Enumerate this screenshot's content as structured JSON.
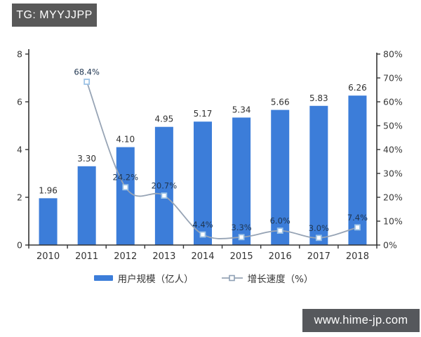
{
  "watermark_top": {
    "label": "TG: MYYJJPP"
  },
  "watermark_bottom": {
    "label": "www.hime-jp.com"
  },
  "chart_data": {
    "type": "bar",
    "subtype": "bar+line combo",
    "categories": [
      "2010",
      "2011",
      "2012",
      "2013",
      "2014",
      "2015",
      "2016",
      "2017",
      "2018"
    ],
    "series": [
      {
        "name": "用户规模（亿人）",
        "type": "bar",
        "axis": "left",
        "values": [
          1.96,
          3.3,
          4.1,
          4.95,
          5.17,
          5.34,
          5.66,
          5.83,
          6.26
        ],
        "labels": [
          "1.96",
          "3.30",
          "4.10",
          "4.95",
          "5.17",
          "5.34",
          "5.66",
          "5.83",
          "6.26"
        ],
        "color": "#3c7dd9"
      },
      {
        "name": "增长速度（%）",
        "type": "line",
        "axis": "right",
        "values": [
          null,
          68.4,
          24.2,
          20.7,
          4.4,
          3.3,
          6.0,
          3.0,
          7.4
        ],
        "labels": [
          "",
          "68.4%",
          "24.2%",
          "20.7%",
          "4.4%",
          "3.3%",
          "6.0%",
          "3.0%",
          "7.4%"
        ],
        "color": "#97a4b5",
        "marker": "open-square",
        "marker_stroke": "#9dc3e6",
        "marker_fill": "#ffffff"
      }
    ],
    "title": "",
    "xlabel": "",
    "ylabel_left": "",
    "ylabel_right": "",
    "left_axis": {
      "min": 0,
      "max": 8,
      "ticks": [
        "0",
        "2",
        "4",
        "6",
        "8"
      ]
    },
    "right_axis": {
      "min": 0,
      "max": 80,
      "ticks": [
        "0%",
        "10%",
        "20%",
        "30%",
        "40%",
        "50%",
        "60%",
        "70%",
        "80%"
      ]
    },
    "grid": false,
    "legend_position": "bottom",
    "colors": {
      "axis": "#333333",
      "bar_label": "#303030",
      "pct_label": "#1f3550",
      "tick_label": "#3a3a3a"
    }
  }
}
